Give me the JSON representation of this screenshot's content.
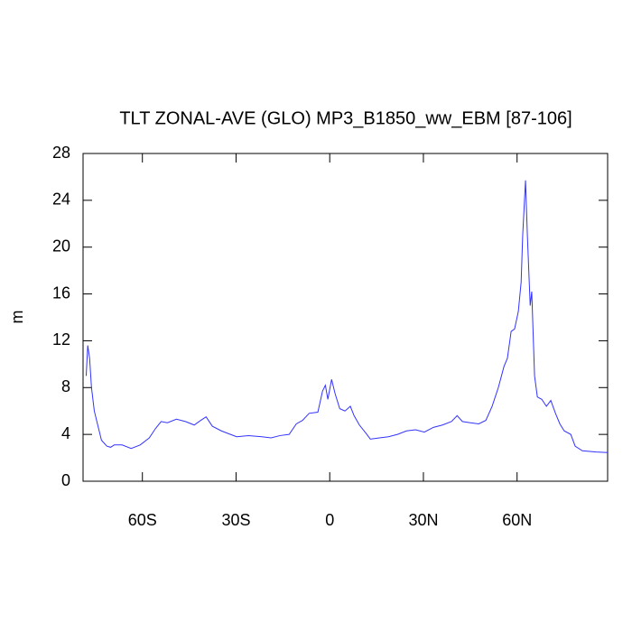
{
  "chart_data": {
    "type": "line",
    "title": "TLT ZONAL-AVE (GLO) MP3_B1850_ww_EBM [87-106]",
    "y_label": "m",
    "x": [
      -78,
      -77.5,
      -76.9,
      -76.3,
      -75.4,
      -74.3,
      -73.1,
      -71.4,
      -70.2,
      -69,
      -66.5,
      -63.6,
      -60.7,
      -57.8,
      -55.8,
      -54,
      -52,
      -49.1,
      -46.2,
      -43.4,
      -41.3,
      -39.6,
      -37.6,
      -34.7,
      -31.8,
      -29.8,
      -26,
      -21.7,
      -18.8,
      -15.9,
      -13,
      -10.7,
      -8.7,
      -6.6,
      -3.8,
      -2.3,
      -1.4,
      -0.6,
      0.6,
      1.7,
      3.2,
      4.9,
      6.6,
      7.8,
      9.5,
      11.6,
      13,
      15.9,
      18.8,
      21.7,
      24.6,
      27.5,
      30.3,
      33.2,
      36.1,
      39,
      40.8,
      42.5,
      44.8,
      47.7,
      50,
      52,
      54,
      55.8,
      56.9,
      58.1,
      59.2,
      60.4,
      61.3,
      61.8,
      62.7,
      63.3,
      64.2,
      64.7,
      65.6,
      66.5,
      67.9,
      69.4,
      70.8,
      72.3,
      73.7,
      75.1,
      77.2,
      78.6,
      80.9,
      85.3,
      89
    ],
    "series": [
      {
        "name": "TLT",
        "color": "#3333ff",
        "values": [
          9,
          11.6,
          10.5,
          8,
          6,
          4.8,
          3.5,
          3.0,
          2.9,
          3.1,
          3.1,
          2.8,
          3.1,
          3.7,
          4.5,
          5.1,
          5.0,
          5.3,
          5.1,
          4.8,
          5.2,
          5.5,
          4.7,
          4.3,
          4.0,
          3.8,
          3.9,
          3.8,
          3.7,
          3.9,
          4.0,
          4.9,
          5.2,
          5.8,
          5.9,
          7.7,
          8.2,
          7.0,
          8.7,
          7.5,
          6.2,
          6.0,
          6.4,
          5.6,
          4.8,
          4.1,
          3.6,
          3.7,
          3.8,
          4.0,
          4.3,
          4.4,
          4.2,
          4.6,
          4.8,
          5.1,
          5.6,
          5.1,
          5.0,
          4.9,
          5.2,
          6.4,
          8,
          9.8,
          10.5,
          12.8,
          13,
          14.5,
          17,
          21,
          25.7,
          21,
          15,
          16.2,
          9,
          7.2,
          7.0,
          6.4,
          6.9,
          5.8,
          4.9,
          4.3,
          4.0,
          3.0,
          2.6,
          2.5,
          2.45
        ]
      }
    ],
    "xlim": [
      -79,
      89
    ],
    "xticks": [
      {
        "value": -60,
        "label": "60S"
      },
      {
        "value": -30,
        "label": "30S"
      },
      0,
      {
        "value": 30,
        "label": "30N"
      },
      {
        "value": 60,
        "label": "60N"
      }
    ],
    "ylim": [
      0,
      28
    ],
    "yticks": [
      0,
      4,
      8,
      12,
      16,
      20,
      24,
      28
    ]
  }
}
